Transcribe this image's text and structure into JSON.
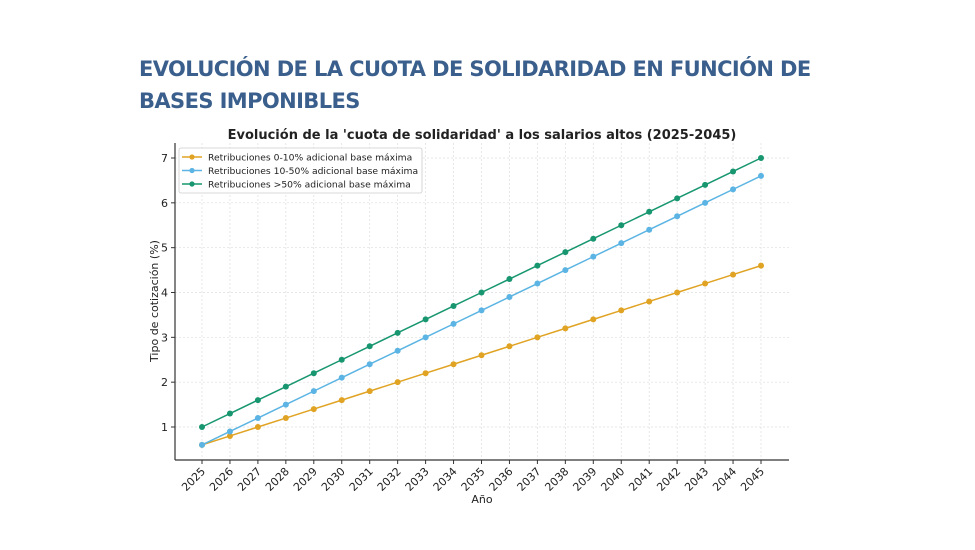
{
  "slide": {
    "title": "EVOLUCIÓN DE LA CUOTA DE SOLIDARIDAD EN FUNCIÓN DE BASES IMPONIBLES"
  },
  "chart_data": {
    "type": "line",
    "title": "Evolución de la 'cuota de solidaridad' a los salarios altos (2025-2045)",
    "xlabel": "Año",
    "ylabel": "Tipo de cotización (%)",
    "x": [
      "2025",
      "2026",
      "2027",
      "2028",
      "2029",
      "2030",
      "2031",
      "2032",
      "2033",
      "2034",
      "2035",
      "2036",
      "2037",
      "2038",
      "2039",
      "2040",
      "2041",
      "2042",
      "2043",
      "2044",
      "2045"
    ],
    "yticks": [
      1,
      2,
      3,
      4,
      5,
      6,
      7
    ],
    "ylim": [
      0.3,
      7.3
    ],
    "grid": true,
    "legend_position": "top-left",
    "series": [
      {
        "name": "Retribuciones 0-10% adicional base máxima",
        "color": "#e0a323",
        "values": [
          0.6,
          0.8,
          1.0,
          1.2,
          1.4,
          1.6,
          1.8,
          2.0,
          2.2,
          2.4,
          2.6,
          2.8,
          3.0,
          3.2,
          3.4,
          3.6,
          3.8,
          4.0,
          4.2,
          4.4,
          4.6
        ]
      },
      {
        "name": "Retribuciones 10-50% adicional base máxima",
        "color": "#5bb4e3",
        "values": [
          0.6,
          0.9,
          1.2,
          1.5,
          1.8,
          2.1,
          2.4,
          2.7,
          3.0,
          3.3,
          3.6,
          3.9,
          4.2,
          4.5,
          4.8,
          5.1,
          5.4,
          5.7,
          6.0,
          6.3,
          6.6
        ]
      },
      {
        "name": "Retribuciones >50% adicional base máxima",
        "color": "#17966f",
        "values": [
          1.0,
          1.3,
          1.6,
          1.9,
          2.2,
          2.5,
          2.8,
          3.1,
          3.4,
          3.7,
          4.0,
          4.3,
          4.6,
          4.9,
          5.2,
          5.5,
          5.8,
          6.1,
          6.4,
          6.7,
          7.0
        ]
      }
    ]
  }
}
